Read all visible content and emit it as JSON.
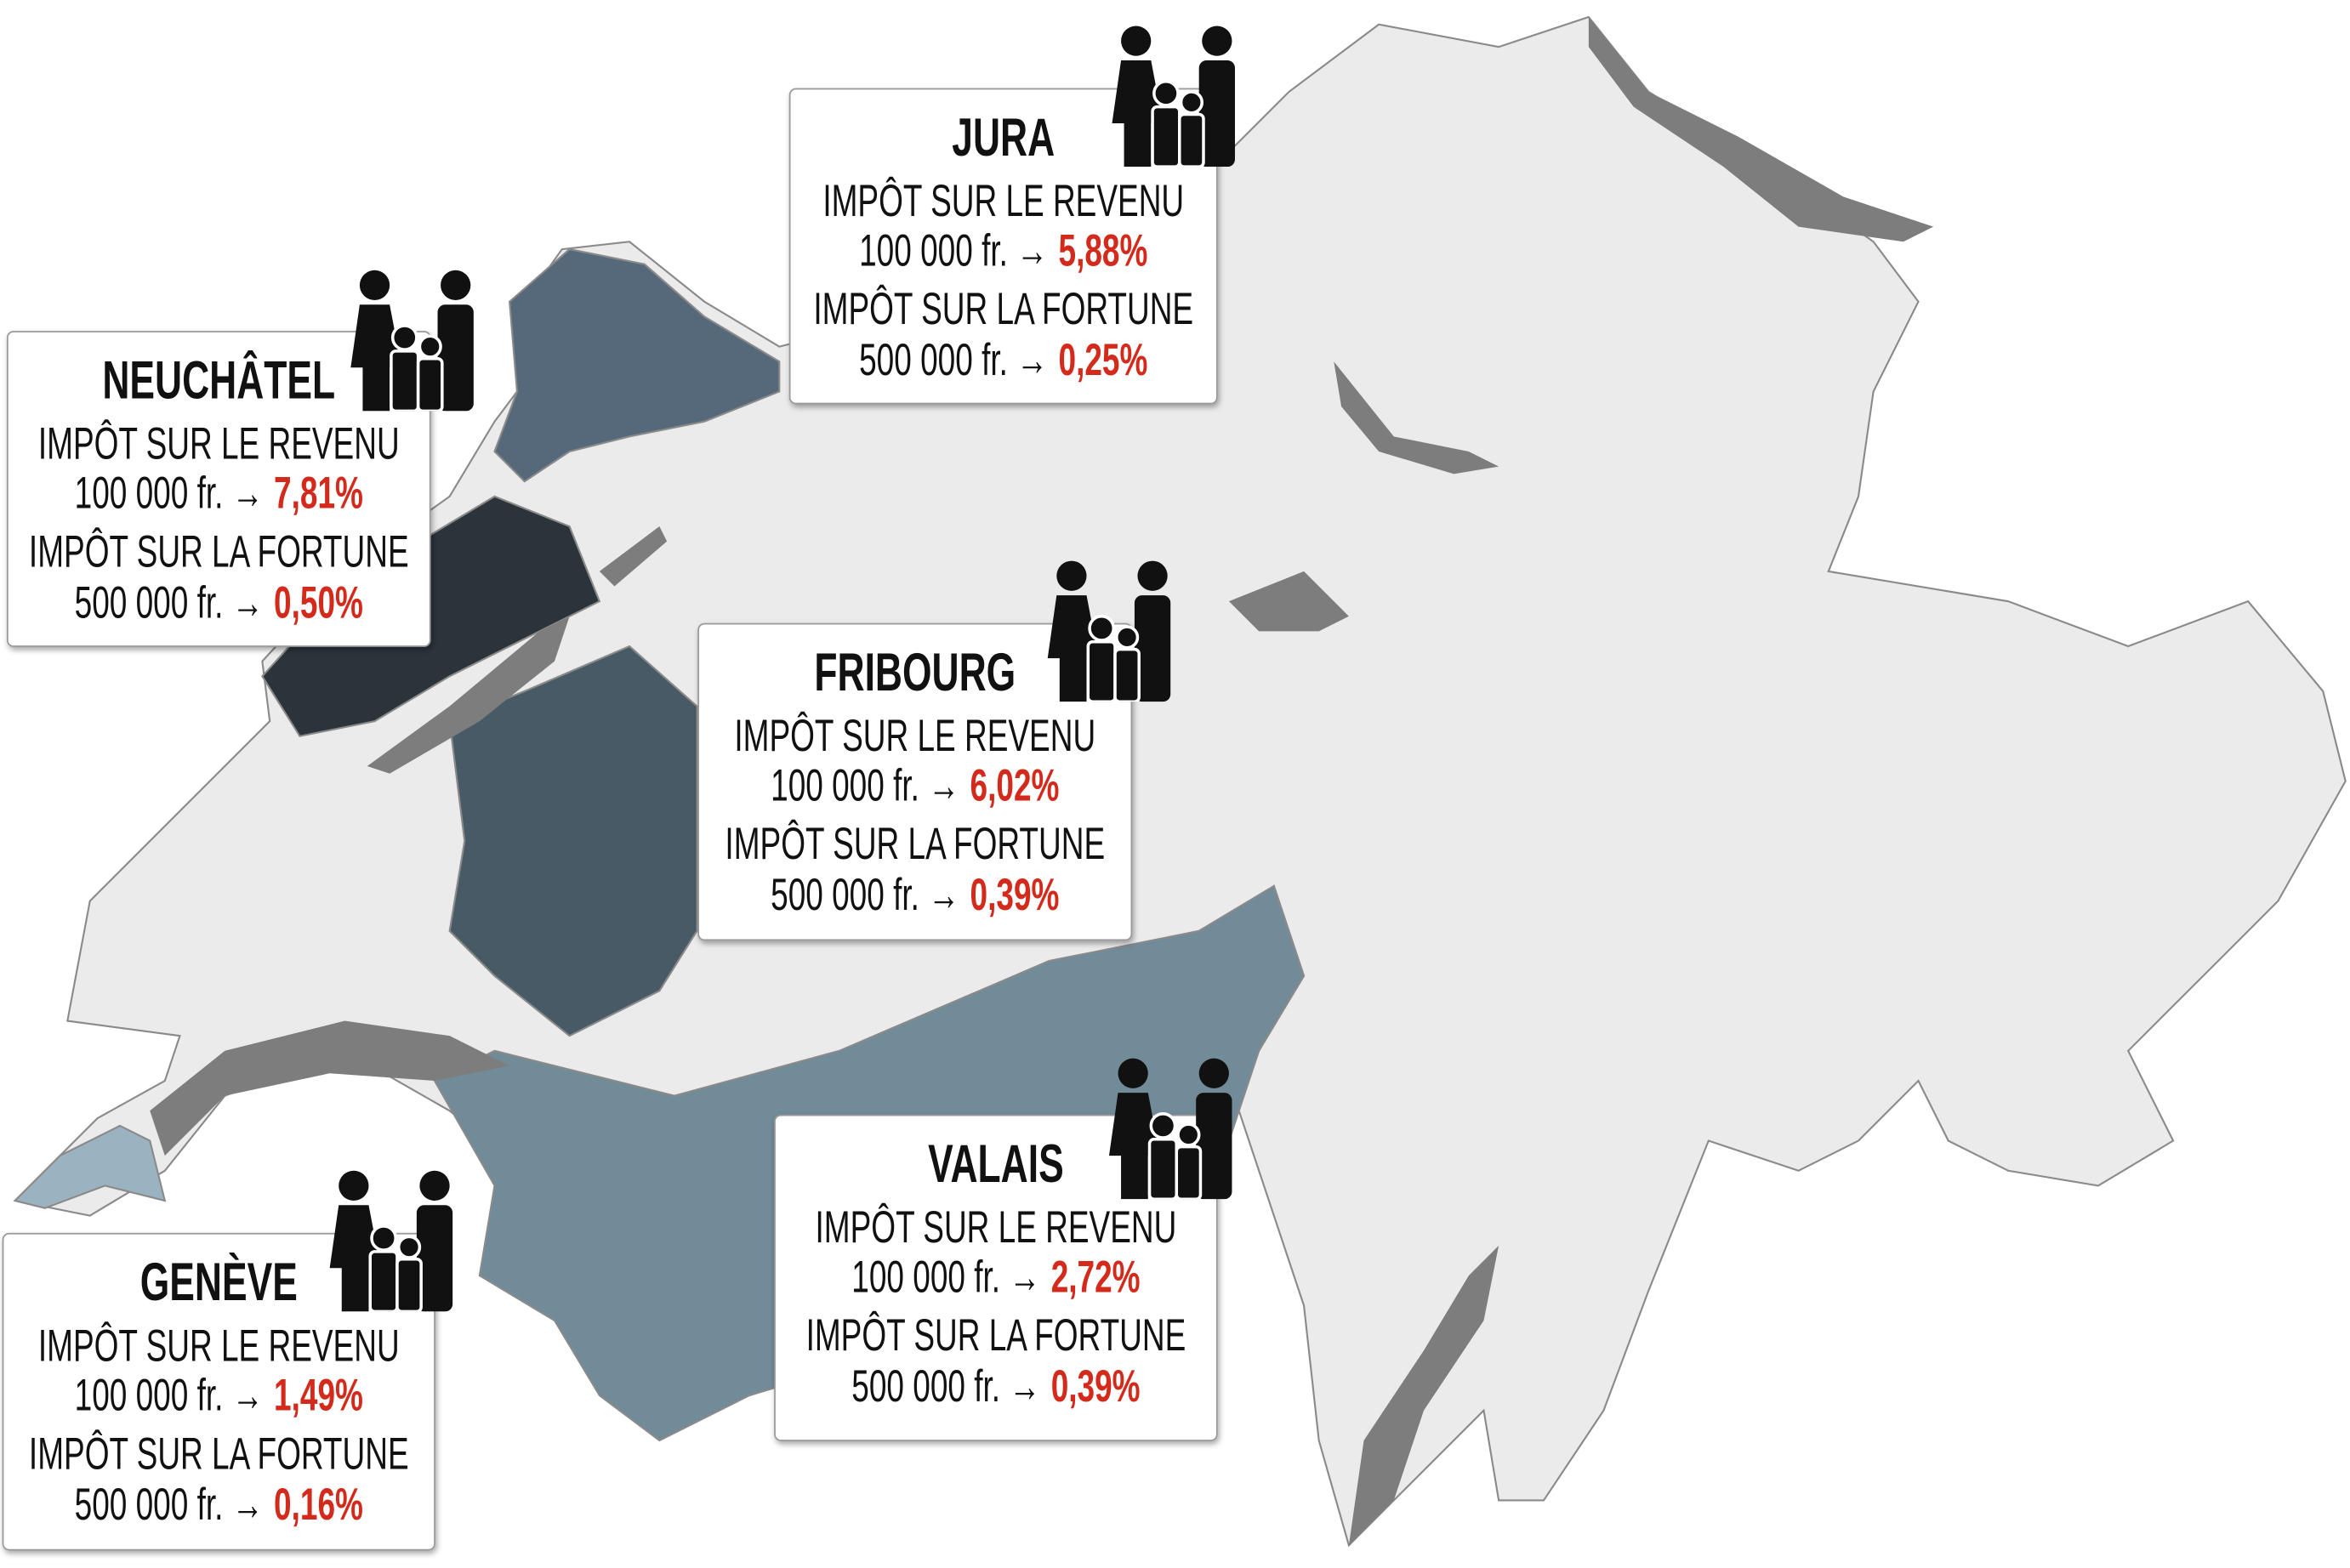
{
  "cantons": [
    {
      "name": "JURA",
      "income_label": "IMPÔT SUR LE REVENU",
      "income_amount": "100 000 fr. →",
      "income_rate": "5,88%",
      "wealth_label": "IMPÔT SUR LA FORTUNE",
      "wealth_amount": "500 000 fr. →",
      "wealth_rate": "0,25%"
    },
    {
      "name": "NEUCHÂTEL",
      "income_label": "IMPÔT SUR LE REVENU",
      "income_amount": "100 000 fr. →",
      "income_rate": "7,81%",
      "wealth_label": "IMPÔT SUR LA FORTUNE",
      "wealth_amount": "500 000 fr. →",
      "wealth_rate": "0,50%"
    },
    {
      "name": "FRIBOURG",
      "income_label": "IMPÔT SUR LE REVENU",
      "income_amount": "100 000 fr. →",
      "income_rate": "6,02%",
      "wealth_label": "IMPÔT SUR LA FORTUNE",
      "wealth_amount": "500 000 fr. →",
      "wealth_rate": "0,39%"
    },
    {
      "name": "VALAIS",
      "income_label": "IMPÔT SUR LE REVENU",
      "income_amount": "100 000 fr. →",
      "income_rate": "2,72%",
      "wealth_label": "IMPÔT SUR LA FORTUNE",
      "wealth_amount": "500 000 fr. →",
      "wealth_rate": "0,39%"
    },
    {
      "name": "GENÈVE",
      "income_label": "IMPÔT SUR LE REVENU",
      "income_amount": "100 000 fr. →",
      "income_rate": "1,49%",
      "wealth_label": "IMPÔT SUR LA FORTUNE",
      "wealth_amount": "500 000 fr. →",
      "wealth_rate": "0,16%"
    }
  ]
}
